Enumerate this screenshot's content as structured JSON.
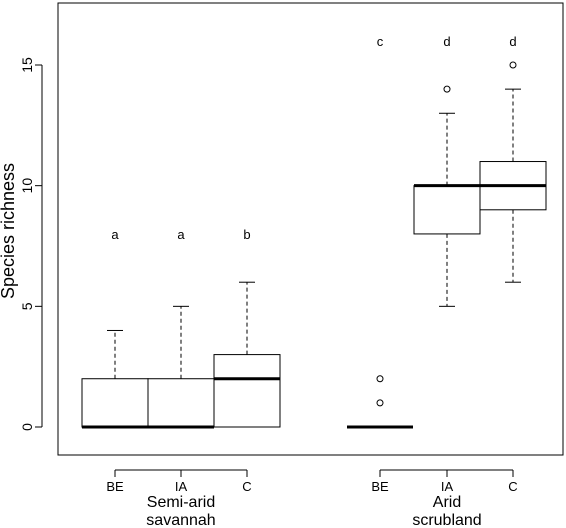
{
  "chart_data": {
    "type": "box",
    "ylabel": "Species richness",
    "xlabel": "",
    "ylim": [
      -1.3,
      17.6
    ],
    "yticks": [
      0,
      5,
      10,
      15
    ],
    "groups": [
      {
        "label": [
          "Semi-arid",
          "savannah"
        ]
      },
      {
        "label": [
          "Arid",
          "scrubland"
        ]
      }
    ],
    "boxes": [
      {
        "group": 0,
        "category": "BE",
        "letter": "a",
        "min": 0,
        "q1": 0,
        "median": 0,
        "q3": 2,
        "max": 4,
        "outliers": []
      },
      {
        "group": 0,
        "category": "IA",
        "letter": "a",
        "min": 0,
        "q1": 0,
        "median": 0,
        "q3": 2,
        "max": 5,
        "outliers": []
      },
      {
        "group": 0,
        "category": "C",
        "letter": "b",
        "min": 0,
        "q1": 0,
        "median": 2,
        "q3": 3,
        "max": 6,
        "outliers": []
      },
      {
        "group": 1,
        "category": "BE",
        "letter": "c",
        "min": 0,
        "q1": 0,
        "median": 0,
        "q3": 0,
        "max": 0,
        "outliers": [
          1,
          2
        ]
      },
      {
        "group": 1,
        "category": "IA",
        "letter": "d",
        "min": 5,
        "q1": 8,
        "median": 10,
        "q3": 10,
        "max": 13,
        "outliers": [
          14
        ]
      },
      {
        "group": 1,
        "category": "C",
        "letter": "d",
        "min": 6,
        "q1": 9,
        "median": 10,
        "q3": 11,
        "max": 14,
        "outliers": [
          15
        ]
      }
    ],
    "letter_y": [
      8,
      8,
      8,
      16,
      16,
      16
    ]
  }
}
